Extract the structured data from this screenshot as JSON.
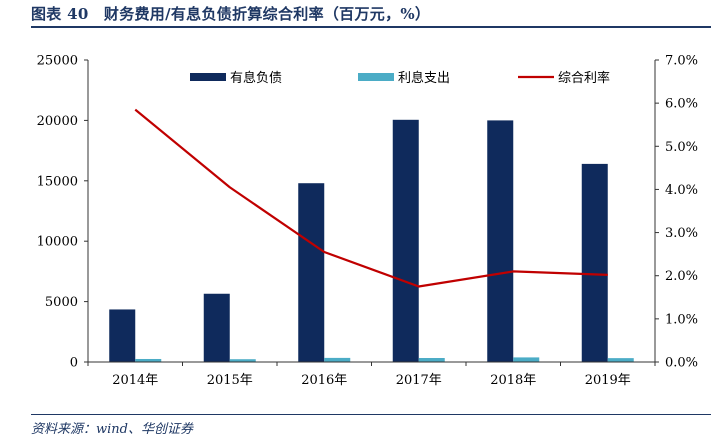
{
  "title": "图表 40　财务费用/有息负债折算综合利率（百万元，%）",
  "source": "资料来源：wind、华创证券",
  "chart_data": {
    "type": "bar+line",
    "categories": [
      "2014年",
      "2015年",
      "2016年",
      "2017年",
      "2018年",
      "2019年"
    ],
    "series": [
      {
        "name": "有息负债",
        "type": "bar",
        "axis": "left",
        "color": "#0f2a5c",
        "values": [
          4350,
          5650,
          14800,
          20050,
          20000,
          16400
        ]
      },
      {
        "name": "利息支出",
        "type": "bar",
        "axis": "left",
        "color": "#4bacc6",
        "values": [
          250,
          230,
          340,
          330,
          380,
          320
        ]
      },
      {
        "name": "综合利率",
        "type": "line",
        "axis": "right",
        "color": "#c00000",
        "values": [
          5.85,
          4.05,
          2.55,
          1.75,
          2.1,
          2.02
        ]
      }
    ],
    "left_axis": {
      "min": 0,
      "max": 25000,
      "ticks": [
        "0",
        "5000",
        "10000",
        "15000",
        "20000",
        "25000"
      ]
    },
    "right_axis": {
      "min": 0,
      "max": 7,
      "ticks": [
        "0.0%",
        "1.0%",
        "2.0%",
        "3.0%",
        "4.0%",
        "5.0%",
        "6.0%",
        "7.0%"
      ]
    },
    "legend_position": "top"
  }
}
